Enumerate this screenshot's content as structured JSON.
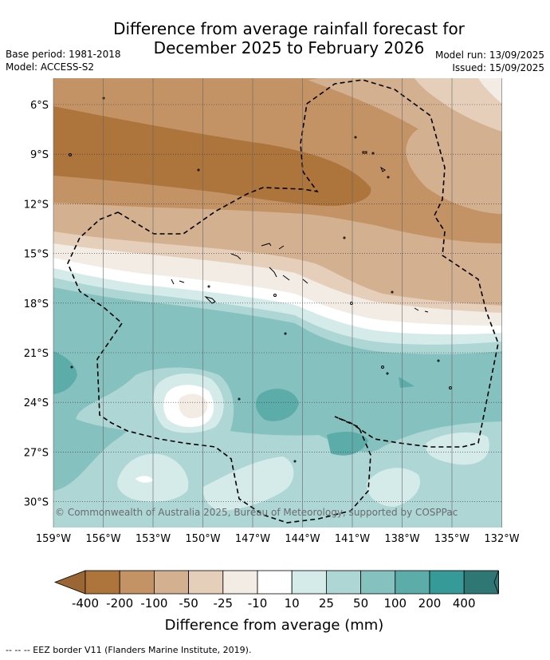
{
  "title_line1": "Difference from average rainfall forecast for",
  "title_line2": "December 2025 to February 2026",
  "base_period": "Base period: 1981-2018",
  "model": "Model: ACCESS-S2",
  "model_run": "Model run: 13/09/2025",
  "issued": "Issued: 15/09/2025",
  "copyright": "© Commonwealth of Australia 2025, Bureau of Meteorology, supported by COSPPac",
  "lat_labels": [
    "6°S",
    "9°S",
    "12°S",
    "15°S",
    "18°S",
    "21°S",
    "24°S",
    "27°S",
    "30°S"
  ],
  "lon_labels": [
    "159°W",
    "156°W",
    "153°W",
    "150°W",
    "147°W",
    "144°W",
    "141°W",
    "138°W",
    "135°W",
    "132°W"
  ],
  "colorbar": {
    "title": "Difference from average (mm)",
    "ticks": [
      "-400",
      "-200",
      "-100",
      "-50",
      "-25",
      "-10",
      "10",
      "25",
      "50",
      "100",
      "200",
      "400"
    ],
    "colors": [
      "#ad743c",
      "#c39365",
      "#d3b08f",
      "#e5cfba",
      "#f2ece5",
      "#ffffff",
      "#d5ebea",
      "#add6d5",
      "#85c1bf",
      "#5cacaa",
      "#359a98",
      "#2e7774"
    ],
    "end_low_color": "#9a6633",
    "end_high_color": "#2e7774"
  },
  "legend_line": "--  --  -- EEZ border V11 (Flanders Marine Institute, 2019)."
}
